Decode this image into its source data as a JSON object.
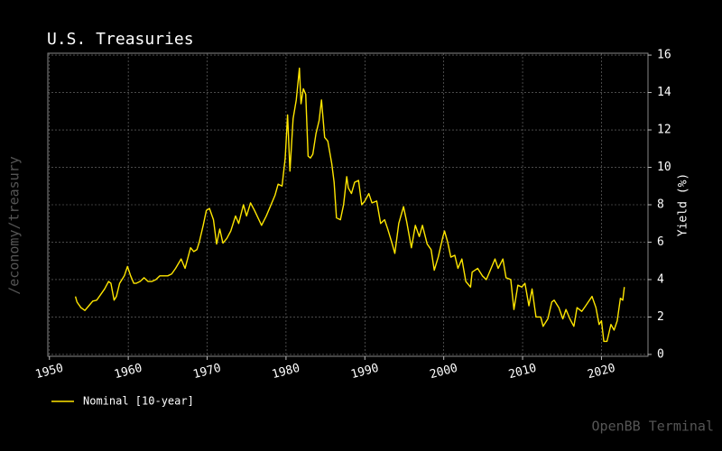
{
  "chart_data": {
    "type": "line",
    "title": "U.S. Treasuries",
    "y_label": "Yield (%)",
    "annotations": [
      "/economy/treasury",
      "OpenBB Terminal"
    ],
    "x": [
      1953.3,
      1953.5,
      1954.0,
      1954.5,
      1955.0,
      1955.5,
      1956.0,
      1956.5,
      1957.0,
      1957.5,
      1957.8,
      1958.2,
      1958.5,
      1958.9,
      1959.5,
      1959.9,
      1960.3,
      1960.7,
      1961.0,
      1961.5,
      1962.0,
      1962.5,
      1963.0,
      1963.5,
      1964.0,
      1964.5,
      1965.0,
      1965.5,
      1966.0,
      1966.7,
      1967.2,
      1967.9,
      1968.3,
      1968.7,
      1969.0,
      1969.5,
      1969.9,
      1970.3,
      1970.8,
      1971.2,
      1971.6,
      1972.0,
      1972.5,
      1973.0,
      1973.6,
      1974.0,
      1974.6,
      1975.0,
      1975.5,
      1976.0,
      1976.9,
      1977.5,
      1978.0,
      1978.6,
      1979.0,
      1979.5,
      1979.9,
      1980.2,
      1980.5,
      1980.9,
      1981.3,
      1981.7,
      1981.9,
      1982.2,
      1982.5,
      1982.8,
      1983.1,
      1983.4,
      1983.8,
      1984.2,
      1984.5,
      1984.9,
      1985.3,
      1985.8,
      1986.1,
      1986.4,
      1986.9,
      1987.3,
      1987.7,
      1987.9,
      1988.3,
      1988.7,
      1989.2,
      1989.6,
      1990.0,
      1990.5,
      1990.9,
      1991.5,
      1992.0,
      1992.5,
      1992.9,
      1993.4,
      1993.8,
      1994.3,
      1994.9,
      1995.3,
      1995.9,
      1996.4,
      1996.9,
      1997.3,
      1997.9,
      1998.4,
      1998.8,
      1999.3,
      1999.9,
      2000.1,
      2000.5,
      2000.9,
      2001.4,
      2001.8,
      2002.3,
      2002.8,
      2003.4,
      2003.6,
      2004.3,
      2004.9,
      2005.4,
      2005.9,
      2006.5,
      2006.9,
      2007.5,
      2007.9,
      2008.5,
      2008.9,
      2009.4,
      2009.9,
      2010.3,
      2010.8,
      2011.2,
      2011.7,
      2012.3,
      2012.6,
      2013.2,
      2013.7,
      2014.0,
      2014.6,
      2015.1,
      2015.5,
      2016.0,
      2016.5,
      2016.9,
      2017.5,
      2018.0,
      2018.8,
      2019.3,
      2019.7,
      2020.0,
      2020.3,
      2020.7,
      2021.2,
      2021.6,
      2022.0,
      2022.4,
      2022.7,
      2022.9
    ],
    "series": [
      {
        "name": "Nominal [10-year]",
        "color": "#ffe600",
        "values": [
          3.1,
          2.8,
          2.5,
          2.35,
          2.6,
          2.85,
          2.9,
          3.2,
          3.5,
          3.9,
          3.8,
          2.9,
          3.1,
          3.8,
          4.2,
          4.7,
          4.2,
          3.8,
          3.8,
          3.9,
          4.1,
          3.9,
          3.9,
          4.0,
          4.2,
          4.2,
          4.2,
          4.3,
          4.6,
          5.1,
          4.6,
          5.7,
          5.5,
          5.6,
          6.0,
          6.9,
          7.7,
          7.8,
          7.2,
          5.9,
          6.7,
          5.95,
          6.2,
          6.6,
          7.4,
          7.0,
          8.0,
          7.4,
          8.1,
          7.7,
          6.9,
          7.4,
          7.9,
          8.5,
          9.1,
          9.0,
          10.5,
          12.8,
          9.8,
          12.6,
          13.6,
          15.3,
          13.4,
          14.2,
          13.9,
          10.6,
          10.5,
          10.7,
          11.8,
          12.5,
          13.6,
          11.6,
          11.4,
          10.2,
          9.2,
          7.3,
          7.2,
          8.0,
          9.5,
          8.9,
          8.6,
          9.2,
          9.3,
          8.0,
          8.2,
          8.6,
          8.1,
          8.2,
          7.0,
          7.2,
          6.7,
          6.0,
          5.4,
          7.0,
          7.9,
          7.1,
          5.7,
          6.9,
          6.3,
          6.9,
          5.9,
          5.6,
          4.5,
          5.2,
          6.3,
          6.6,
          6.0,
          5.2,
          5.3,
          4.6,
          5.1,
          3.9,
          3.6,
          4.4,
          4.6,
          4.2,
          4.0,
          4.5,
          5.1,
          4.6,
          5.1,
          4.1,
          4.0,
          2.4,
          3.7,
          3.6,
          3.8,
          2.6,
          3.5,
          2.0,
          2.0,
          1.5,
          1.9,
          2.8,
          2.9,
          2.5,
          1.9,
          2.4,
          1.9,
          1.5,
          2.5,
          2.3,
          2.6,
          3.1,
          2.5,
          1.6,
          1.8,
          0.7,
          0.7,
          1.6,
          1.3,
          1.8,
          3.0,
          2.9,
          3.6
        ]
      }
    ],
    "xlim": [
      1949.8,
      2025.9
    ],
    "xticks": [
      1950,
      1960,
      1970,
      1980,
      1990,
      2000,
      2010,
      2020
    ],
    "ylim": [
      -0.1,
      16.1
    ],
    "yticks": [
      0,
      2,
      4,
      6,
      8,
      10,
      12,
      14,
      16
    ],
    "grid": true,
    "legend": "bottom-left"
  }
}
